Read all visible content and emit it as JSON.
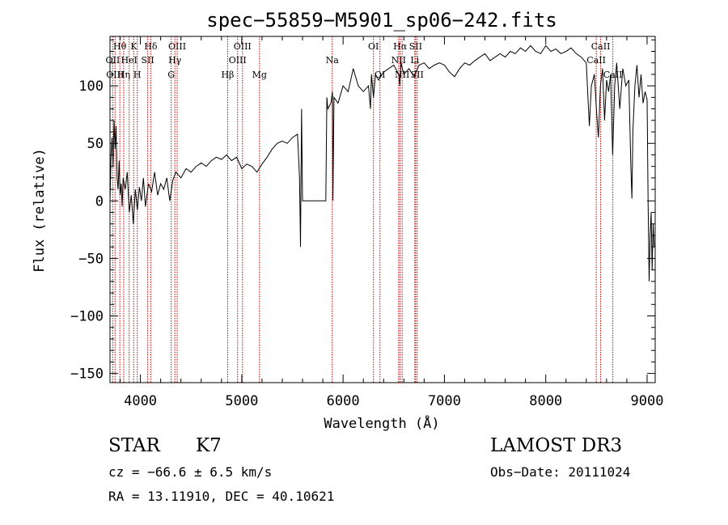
{
  "chart_data": {
    "type": "line",
    "title": "spec−55859−M5901_sp06−242.fits",
    "xlabel": "Wavelength (Å)",
    "ylabel": "Flux (relative)",
    "xlim": [
      3700,
      9080
    ],
    "ylim": [
      -158,
      143
    ],
    "x_ticks": [
      4000,
      5000,
      6000,
      7000,
      8000,
      9000
    ],
    "x_tick_labels": [
      "4000",
      "5000",
      "6000",
      "7000",
      "8000",
      "9000"
    ],
    "y_ticks": [
      -150,
      -100,
      -50,
      0,
      50,
      100
    ],
    "y_tick_labels": [
      "−150",
      "−100",
      "−50",
      "0",
      "50",
      "100"
    ],
    "grid": false,
    "series": [
      {
        "name": "spectrum",
        "color": "#000000",
        "points": [
          [
            3700,
            0
          ],
          [
            3710,
            40
          ],
          [
            3720,
            55
          ],
          [
            3730,
            30
          ],
          [
            3740,
            70
          ],
          [
            3750,
            45
          ],
          [
            3760,
            65
          ],
          [
            3770,
            20
          ],
          [
            3780,
            10
          ],
          [
            3790,
            35
          ],
          [
            3800,
            5
          ],
          [
            3810,
            15
          ],
          [
            3820,
            -5
          ],
          [
            3830,
            20
          ],
          [
            3850,
            10
          ],
          [
            3870,
            25
          ],
          [
            3890,
            -10
          ],
          [
            3910,
            5
          ],
          [
            3930,
            -20
          ],
          [
            3950,
            10
          ],
          [
            3970,
            -8
          ],
          [
            3990,
            12
          ],
          [
            4010,
            0
          ],
          [
            4030,
            20
          ],
          [
            4050,
            -5
          ],
          [
            4080,
            15
          ],
          [
            4110,
            8
          ],
          [
            4140,
            25
          ],
          [
            4170,
            5
          ],
          [
            4200,
            15
          ],
          [
            4230,
            10
          ],
          [
            4260,
            20
          ],
          [
            4290,
            0
          ],
          [
            4320,
            18
          ],
          [
            4350,
            25
          ],
          [
            4400,
            20
          ],
          [
            4450,
            28
          ],
          [
            4500,
            25
          ],
          [
            4550,
            30
          ],
          [
            4600,
            33
          ],
          [
            4650,
            30
          ],
          [
            4700,
            35
          ],
          [
            4750,
            38
          ],
          [
            4800,
            36
          ],
          [
            4850,
            40
          ],
          [
            4900,
            35
          ],
          [
            4950,
            38
          ],
          [
            5000,
            28
          ],
          [
            5050,
            32
          ],
          [
            5100,
            30
          ],
          [
            5150,
            25
          ],
          [
            5200,
            32
          ],
          [
            5250,
            38
          ],
          [
            5300,
            45
          ],
          [
            5350,
            50
          ],
          [
            5400,
            52
          ],
          [
            5450,
            50
          ],
          [
            5500,
            55
          ],
          [
            5550,
            58
          ],
          [
            5570,
            20
          ],
          [
            5580,
            -40
          ],
          [
            5590,
            80
          ],
          [
            5600,
            0
          ],
          [
            5700,
            0
          ],
          [
            5800,
            0
          ],
          [
            5830,
            0
          ],
          [
            5840,
            90
          ],
          [
            5850,
            80
          ],
          [
            5880,
            85
          ],
          [
            5895,
            95
          ],
          [
            5900,
            0
          ],
          [
            5910,
            90
          ],
          [
            5950,
            85
          ],
          [
            6000,
            100
          ],
          [
            6050,
            95
          ],
          [
            6100,
            115
          ],
          [
            6150,
            100
          ],
          [
            6200,
            95
          ],
          [
            6250,
            100
          ],
          [
            6270,
            80
          ],
          [
            6280,
            110
          ],
          [
            6300,
            90
          ],
          [
            6320,
            110
          ],
          [
            6350,
            105
          ],
          [
            6400,
            112
          ],
          [
            6450,
            115
          ],
          [
            6500,
            118
          ],
          [
            6550,
            110
          ],
          [
            6560,
            100
          ],
          [
            6570,
            120
          ],
          [
            6600,
            110
          ],
          [
            6650,
            115
          ],
          [
            6700,
            108
          ],
          [
            6750,
            118
          ],
          [
            6800,
            120
          ],
          [
            6850,
            115
          ],
          [
            6900,
            118
          ],
          [
            6950,
            120
          ],
          [
            7000,
            118
          ],
          [
            7050,
            112
          ],
          [
            7100,
            108
          ],
          [
            7150,
            115
          ],
          [
            7200,
            120
          ],
          [
            7250,
            118
          ],
          [
            7300,
            122
          ],
          [
            7350,
            125
          ],
          [
            7400,
            128
          ],
          [
            7450,
            122
          ],
          [
            7500,
            125
          ],
          [
            7550,
            128
          ],
          [
            7600,
            125
          ],
          [
            7650,
            130
          ],
          [
            7700,
            128
          ],
          [
            7750,
            133
          ],
          [
            7800,
            130
          ],
          [
            7850,
            135
          ],
          [
            7900,
            130
          ],
          [
            7950,
            128
          ],
          [
            8000,
            135
          ],
          [
            8050,
            130
          ],
          [
            8100,
            132
          ],
          [
            8150,
            128
          ],
          [
            8200,
            130
          ],
          [
            8250,
            133
          ],
          [
            8300,
            128
          ],
          [
            8350,
            125
          ],
          [
            8400,
            120
          ],
          [
            8430,
            65
          ],
          [
            8450,
            100
          ],
          [
            8480,
            110
          ],
          [
            8500,
            80
          ],
          [
            8520,
            55
          ],
          [
            8540,
            100
          ],
          [
            8560,
            115
          ],
          [
            8580,
            70
          ],
          [
            8600,
            105
          ],
          [
            8620,
            95
          ],
          [
            8640,
            110
          ],
          [
            8660,
            40
          ],
          [
            8680,
            100
          ],
          [
            8700,
            120
          ],
          [
            8730,
            80
          ],
          [
            8760,
            115
          ],
          [
            8790,
            100
          ],
          [
            8820,
            105
          ],
          [
            8840,
            30
          ],
          [
            8850,
            2
          ],
          [
            8860,
            60
          ],
          [
            8880,
            100
          ],
          [
            8900,
            118
          ],
          [
            8920,
            90
          ],
          [
            8940,
            110
          ],
          [
            8960,
            85
          ],
          [
            8980,
            95
          ],
          [
            9000,
            88
          ],
          [
            9010,
            0
          ],
          [
            9020,
            -70
          ],
          [
            9030,
            -30
          ],
          [
            9040,
            -10
          ],
          [
            9050,
            -60
          ],
          [
            9060,
            -20
          ],
          [
            9070,
            -40
          ]
        ]
      }
    ],
    "line_markers": [
      {
        "label": "Hθ",
        "x": 3797,
        "row": 0
      },
      {
        "label": "OII",
        "x": 3727,
        "row": 1
      },
      {
        "label": "OIII",
        "x": 3750,
        "row": 2
      },
      {
        "label": "K",
        "x": 3934,
        "row": 0
      },
      {
        "label": "Hη",
        "x": 3835,
        "row": 2
      },
      {
        "label": "HeI",
        "x": 3889,
        "row": 1
      },
      {
        "label": "SII",
        "x": 4072,
        "row": 1
      },
      {
        "label": "H",
        "x": 3969,
        "row": 2
      },
      {
        "label": "Hδ",
        "x": 4102,
        "row": 0
      },
      {
        "label": "OIII",
        "x": 4363,
        "row": 0
      },
      {
        "label": "Hγ",
        "x": 4340,
        "row": 1
      },
      {
        "label": "G",
        "x": 4304,
        "row": 2
      },
      {
        "label": "OIII",
        "x": 5007,
        "row": 0
      },
      {
        "label": "OIII",
        "x": 4959,
        "row": 1
      },
      {
        "label": "Hβ",
        "x": 4861,
        "row": 2
      },
      {
        "label": "Mg",
        "x": 5175,
        "row": 2
      },
      {
        "label": "Na",
        "x": 5893,
        "row": 1
      },
      {
        "label": "OI",
        "x": 6300,
        "row": 0
      },
      {
        "label": "OI",
        "x": 6364,
        "row": 2
      },
      {
        "label": "Hα",
        "x": 6563,
        "row": 0
      },
      {
        "label": "SII",
        "x": 6716,
        "row": 0
      },
      {
        "label": "NII",
        "x": 6548,
        "row": 1
      },
      {
        "label": "Li",
        "x": 6708,
        "row": 1
      },
      {
        "label": "NII",
        "x": 6583,
        "row": 2
      },
      {
        "label": "SII",
        "x": 6731,
        "row": 2
      },
      {
        "label": "CaII",
        "x": 8542,
        "row": 0
      },
      {
        "label": "CaII",
        "x": 8498,
        "row": 1
      },
      {
        "label": "CaII",
        "x": 8662,
        "row": 2
      }
    ],
    "marker_color": "#cc0000"
  },
  "info": {
    "class_label": "STAR",
    "subclass_label": "K7",
    "survey": "LAMOST DR3",
    "redshift": "cz = −66.6 ± 6.5 km/s",
    "obs_date": "Obs−Date: 20111024",
    "coords": "RA =  13.11910, DEC =  40.10621"
  }
}
